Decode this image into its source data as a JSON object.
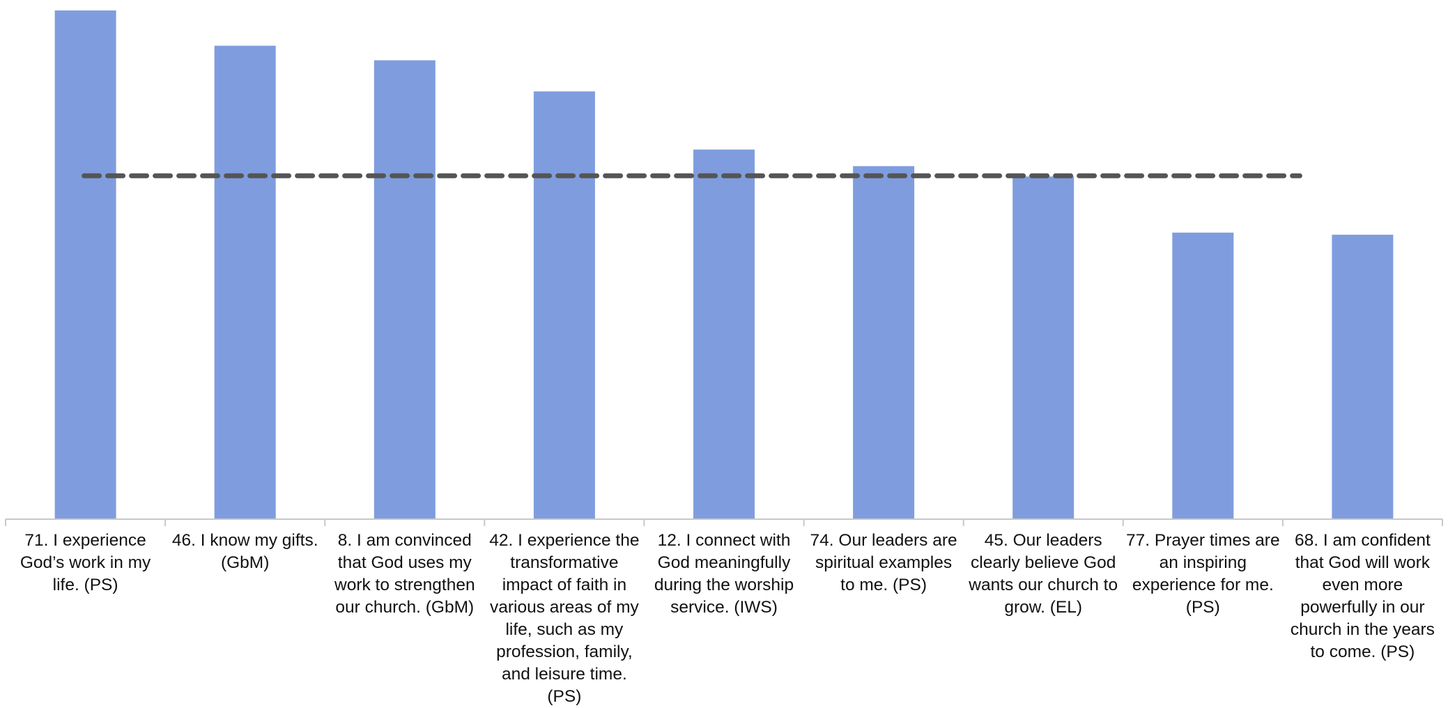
{
  "chart_data": {
    "type": "bar",
    "categories": [
      "71. I experience God’s work in my life.  (PS)",
      "46. I know my gifts.  (GbM)",
      "8. I am convinced that God uses my work to strengthen our church.  (GbM)",
      "42. I experience the transformative impact of faith in various areas of my life, such as my profession, family, and leisure time.  (PS)",
      "12. I connect with God meaningfully during the worship service.  (IWS)",
      "74. Our leaders are spiritual examples to me.  (PS)",
      "45. Our leaders clearly believe God wants our church to grow.  (EL)",
      "77. Prayer times are an inspiring experience for me.  (PS)",
      "68. I am confident that God will work even more powerfully in our church in the years to come.  (PS)"
    ],
    "values": [
      73.5,
      68.4,
      66.3,
      61.8,
      53.4,
      51.0,
      49.5,
      41.4,
      41.1
    ],
    "reference_line": {
      "value": 49.6,
      "style": "dashed"
    },
    "ylim": [
      0,
      74.2
    ],
    "title": "",
    "xlabel": "",
    "ylabel": "",
    "grid": false,
    "legend": "none",
    "colors": {
      "bar": "#7F9DDE",
      "reference_line": "#555555",
      "axis": "#C8C8C8"
    }
  }
}
